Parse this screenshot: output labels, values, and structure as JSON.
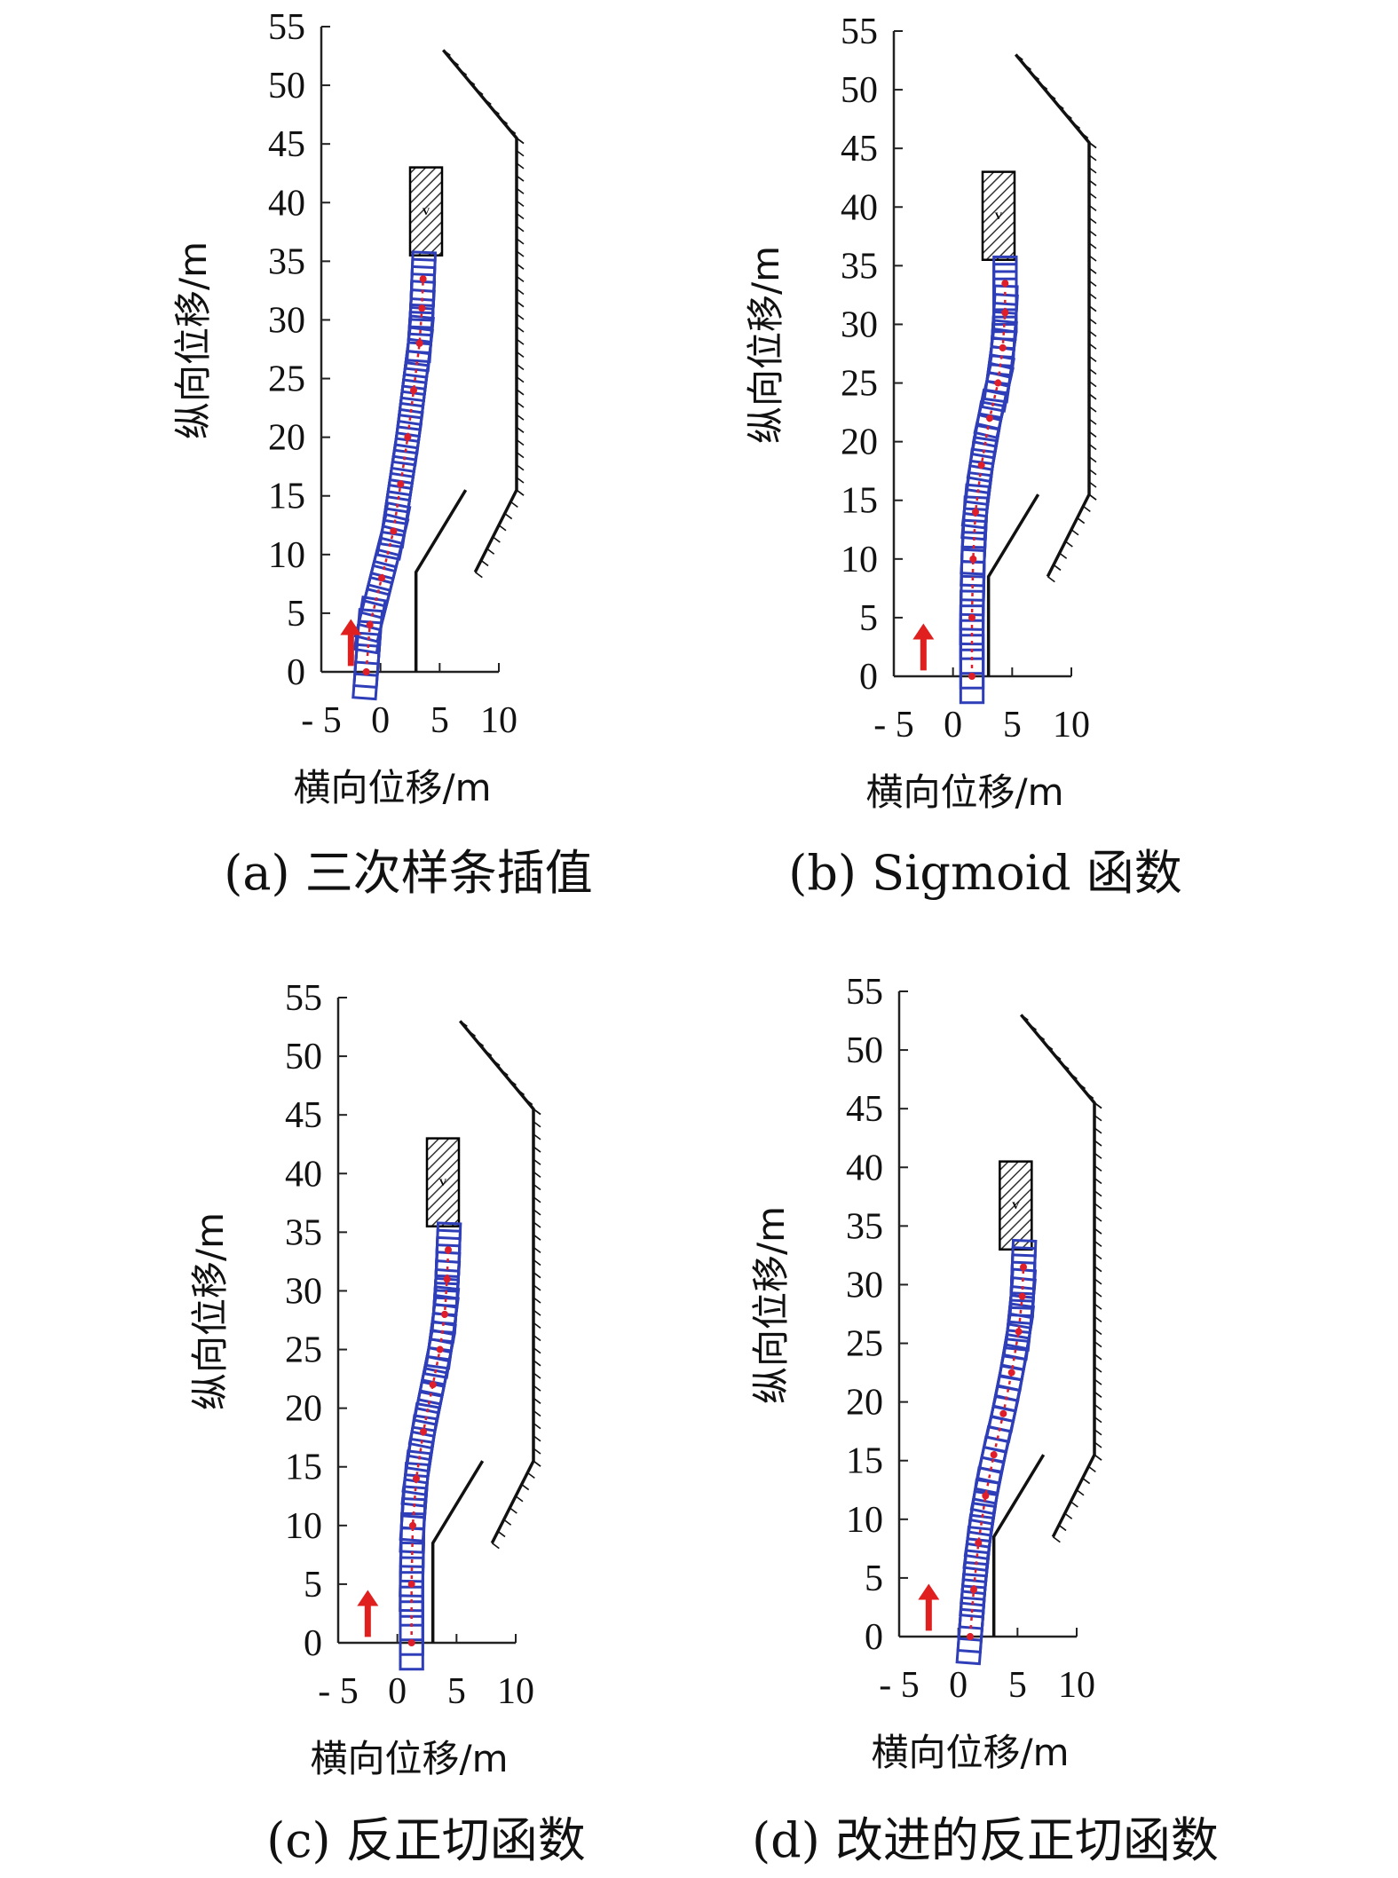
{
  "panels": [
    {
      "caption": "(a) 三次样条插值",
      "chart_data": {
        "type": "line",
        "xlabel": "横向位移/m",
        "ylabel": "纵向位移/m",
        "xlim": [
          -5,
          10
        ],
        "ylim": [
          0,
          55
        ],
        "xticks": [
          "- 5",
          "0",
          "5",
          "10"
        ],
        "yticks": [
          "0",
          "5",
          "10",
          "15",
          "20",
          "25",
          "30",
          "35",
          "40",
          "45",
          "50",
          "55"
        ],
        "obstacle_label": "V",
        "obstacle": {
          "x": [
            2.5,
            5.2
          ],
          "y": [
            35.5,
            43
          ]
        },
        "road_boundary_left": {
          "x": [
            3.0,
            3.0,
            7.2
          ],
          "y": [
            0,
            8.5,
            15.5
          ]
        },
        "road_boundary_right": {
          "x": [
            5.3,
            11.5,
            11.5,
            8.0
          ],
          "y": [
            53,
            45.5,
            15.5,
            8.5
          ]
        },
        "series": [
          {
            "x": [
              -1.2,
              -0.9,
              0.1,
              1.1,
              1.7,
              2.3,
              2.8,
              3.3,
              3.5,
              3.6
            ],
            "y": [
              0,
              4,
              8,
              12,
              16,
              20,
              24,
              28,
              31,
              33.5
            ]
          }
        ],
        "start_arrow": {
          "x": -2.5,
          "y": [
            0.5,
            4.5
          ]
        }
      }
    },
    {
      "caption": "(b) Sigmoid 函数",
      "chart_data": {
        "type": "line",
        "xlabel": "横向位移/m",
        "ylabel": "纵向位移/m",
        "xlim": [
          -5,
          10
        ],
        "ylim": [
          0,
          55
        ],
        "xticks": [
          "- 5",
          "0",
          "5",
          "10"
        ],
        "yticks": [
          "0",
          "5",
          "10",
          "15",
          "20",
          "25",
          "30",
          "35",
          "40",
          "45",
          "50",
          "55"
        ],
        "obstacle_label": "V",
        "obstacle": {
          "x": [
            2.5,
            5.2
          ],
          "y": [
            35.5,
            43
          ]
        },
        "road_boundary_left": {
          "x": [
            3.0,
            3.0,
            7.2
          ],
          "y": [
            0,
            8.5,
            15.5
          ]
        },
        "road_boundary_right": {
          "x": [
            5.3,
            11.5,
            11.5,
            8.0
          ],
          "y": [
            53,
            45.5,
            15.5,
            8.5
          ]
        },
        "series": [
          {
            "x": [
              1.6,
              1.6,
              1.7,
              1.9,
              2.4,
              3.1,
              3.8,
              4.2,
              4.4,
              4.4
            ],
            "y": [
              0,
              5,
              10,
              14,
              18,
              22,
              25,
              28,
              31,
              33.5
            ]
          }
        ],
        "start_arrow": {
          "x": -2.5,
          "y": [
            0.5,
            4.5
          ]
        }
      }
    },
    {
      "caption": "(c) 反正切函数",
      "chart_data": {
        "type": "line",
        "xlabel": "横向位移/m",
        "ylabel": "纵向位移/m",
        "xlim": [
          -5,
          10
        ],
        "ylim": [
          0,
          55
        ],
        "xticks": [
          "- 5",
          "0",
          "5",
          "10"
        ],
        "yticks": [
          "0",
          "5",
          "10",
          "15",
          "20",
          "25",
          "30",
          "35",
          "40",
          "45",
          "50",
          "55"
        ],
        "obstacle_label": "V",
        "obstacle": {
          "x": [
            2.5,
            5.2
          ],
          "y": [
            35.5,
            43
          ]
        },
        "road_boundary_left": {
          "x": [
            3.0,
            3.0,
            7.2
          ],
          "y": [
            0,
            8.5,
            15.5
          ]
        },
        "road_boundary_right": {
          "x": [
            5.3,
            11.5,
            11.5,
            8.0
          ],
          "y": [
            53,
            45.5,
            15.5,
            8.5
          ]
        },
        "series": [
          {
            "x": [
              1.2,
              1.2,
              1.3,
              1.6,
              2.2,
              3.0,
              3.6,
              4.0,
              4.2,
              4.3
            ],
            "y": [
              0,
              5,
              10,
              14,
              18,
              22,
              25,
              28,
              31,
              33.5
            ]
          }
        ],
        "start_arrow": {
          "x": -2.5,
          "y": [
            0.5,
            4.5
          ]
        }
      }
    },
    {
      "caption": "(d) 改进的反正切函数",
      "chart_data": {
        "type": "line",
        "xlabel": "横向位移/m",
        "ylabel": "纵向位移/m",
        "xlim": [
          -5,
          10
        ],
        "ylim": [
          0,
          55
        ],
        "xticks": [
          "- 5",
          "0",
          "5",
          "10"
        ],
        "yticks": [
          "0",
          "5",
          "10",
          "15",
          "20",
          "25",
          "30",
          "35",
          "40",
          "45",
          "50",
          "55"
        ],
        "obstacle_label": "V",
        "obstacle": {
          "x": [
            3.5,
            6.2
          ],
          "y": [
            33,
            40.5
          ]
        },
        "road_boundary_left": {
          "x": [
            3.0,
            3.0,
            7.2
          ],
          "y": [
            0,
            8.5,
            15.5
          ]
        },
        "road_boundary_right": {
          "x": [
            5.3,
            11.5,
            11.5,
            8.0
          ],
          "y": [
            53,
            45.5,
            15.5,
            8.5
          ]
        },
        "series": [
          {
            "x": [
              1.0,
              1.3,
              1.7,
              2.3,
              3.0,
              3.8,
              4.5,
              5.1,
              5.4,
              5.5
            ],
            "y": [
              0,
              4,
              8,
              12,
              15.5,
              19,
              22.5,
              26,
              29,
              31.5
            ]
          }
        ],
        "start_arrow": {
          "x": -2.5,
          "y": [
            0.5,
            4.5
          ]
        }
      }
    }
  ],
  "colors": {
    "vehicle": "#2e3db8",
    "trajectory": "#e01e2a",
    "arrow": "#e0201e",
    "axis": "#222222",
    "boundary": "#111111"
  }
}
